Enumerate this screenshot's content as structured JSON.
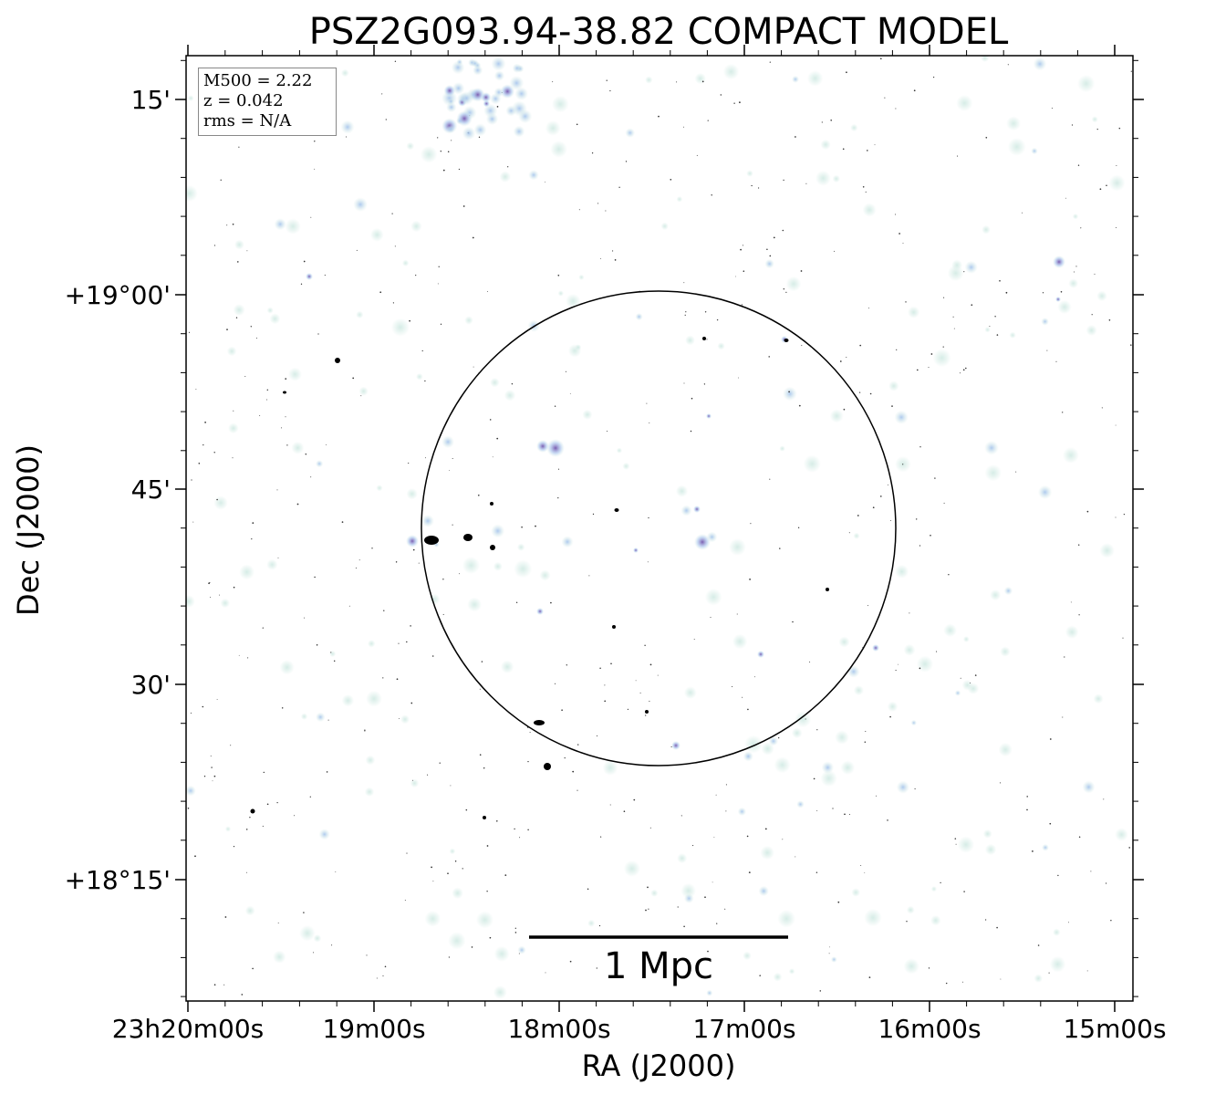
{
  "title": "PSZ2G093.94-38.82 COMPACT MODEL",
  "info_box": {
    "m500": "M500 = 2.22",
    "z": "z = 0.042",
    "rms": "rms = N/A"
  },
  "axes": {
    "xlabel": "RA (J2000)",
    "ylabel": "Dec (J2000)",
    "ra_ticks": [
      "23h20m00s",
      "19m00s",
      "18m00s",
      "17m00s",
      "16m00s",
      "15m00s"
    ],
    "dec_ticks": [
      "15'",
      "+19°00'",
      "45'",
      "30'",
      "+18°15'"
    ]
  },
  "scale_bar": {
    "label": "1 Mpc"
  },
  "colors": {
    "source_faint": "#cfe9e2",
    "source_mid": "#a9c6ee",
    "source_bright": "#7a5cb0",
    "saturated": "#000000"
  }
}
